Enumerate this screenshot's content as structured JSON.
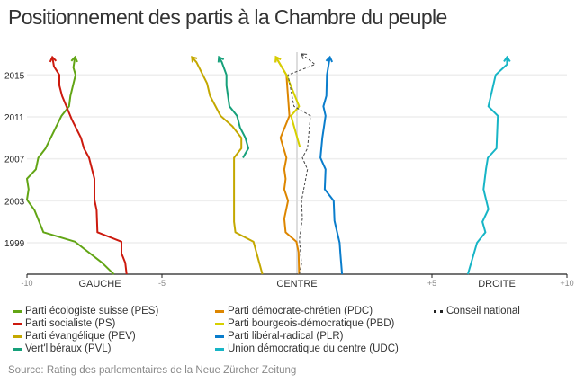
{
  "title": "Positionnement des partis à la Chambre du peuple",
  "source": "Source: Rating des parlementaires de la Neue Zürcher Zeitung",
  "chart_data": {
    "type": "line",
    "title": "Positionnement des partis à la Chambre du peuple",
    "xlim": [
      -10,
      10
    ],
    "ylim": [
      1996,
      2017
    ],
    "x_ticks": [
      {
        "value": -10,
        "label": "-10"
      },
      {
        "value": -5,
        "label": "-5"
      },
      {
        "value": 5,
        "label": "+5"
      },
      {
        "value": 10,
        "label": "+10"
      }
    ],
    "x_zone_labels": [
      {
        "value": -7.3,
        "label": "GAUCHE"
      },
      {
        "value": 0,
        "label": "CENTRE"
      },
      {
        "value": 7.4,
        "label": "DROITE"
      }
    ],
    "y_ticks": [
      1999,
      2003,
      2007,
      2011,
      2015
    ],
    "grid": true,
    "legend_position": "bottom",
    "series": [
      {
        "name": "Parti écologiste suisse (PES)",
        "color": "#62a515",
        "points": [
          [
            1996,
            -6.78
          ],
          [
            1997.1,
            -7.22
          ],
          [
            1999.1,
            -8.22
          ],
          [
            2000,
            -9.39
          ],
          [
            2002.1,
            -9.72
          ],
          [
            2003.1,
            -10
          ],
          [
            2004.1,
            -9.94
          ],
          [
            2005.1,
            -10
          ],
          [
            2006,
            -9.67
          ],
          [
            2007.1,
            -9.58
          ],
          [
            2008,
            -9.31
          ],
          [
            2011.1,
            -8.72
          ],
          [
            2012,
            -8.44
          ],
          [
            2013,
            -8.39
          ],
          [
            2015,
            -8.2
          ],
          [
            2015.7,
            -8.28
          ],
          [
            2016.7,
            -8.22
          ]
        ]
      },
      {
        "name": "Parti socialiste (PS)",
        "color": "#cc1a0e",
        "points": [
          [
            1996,
            -6.31
          ],
          [
            1997.1,
            -6.36
          ],
          [
            1998,
            -6.5
          ],
          [
            1999.1,
            -6.5
          ],
          [
            2000,
            -7.39
          ],
          [
            2002.1,
            -7.42
          ],
          [
            2003.1,
            -7.5
          ],
          [
            2005.1,
            -7.5
          ],
          [
            2007.1,
            -7.7
          ],
          [
            2008,
            -7.89
          ],
          [
            2009,
            -8
          ],
          [
            2010.7,
            -8.33
          ],
          [
            2013,
            -8.7
          ],
          [
            2014,
            -8.8
          ],
          [
            2015,
            -8.8
          ],
          [
            2015.8,
            -9
          ],
          [
            2016.7,
            -9.06
          ]
        ]
      },
      {
        "name": "Parti évangélique (PEV)",
        "color": "#c4a800",
        "points": [
          [
            1996,
            -1.28
          ],
          [
            1999.1,
            -1.61
          ],
          [
            2000,
            -2.28
          ],
          [
            2001,
            -2.33
          ],
          [
            2007.1,
            -2.33
          ],
          [
            2008,
            -2.06
          ],
          [
            2009,
            -2.06
          ],
          [
            2010.1,
            -2.39
          ],
          [
            2011.1,
            -2.83
          ],
          [
            2013,
            -3.22
          ],
          [
            2014.2,
            -3.33
          ],
          [
            2016.2,
            -3.72
          ],
          [
            2016.7,
            -3.89
          ]
        ]
      },
      {
        "name": "Vert'libéraux (PVL)",
        "color": "#16a07a",
        "points": [
          [
            2007.1,
            -2
          ],
          [
            2008,
            -1.8
          ],
          [
            2009,
            -1.91
          ],
          [
            2010,
            -2.11
          ],
          [
            2011.1,
            -2.22
          ],
          [
            2012,
            -2.5
          ],
          [
            2014,
            -2.61
          ],
          [
            2015,
            -2.61
          ],
          [
            2016.2,
            -2.78
          ],
          [
            2016.7,
            -2.89
          ]
        ]
      },
      {
        "name": "Parti démocrate-chrétien (PDC)",
        "color": "#dd8600",
        "points": [
          [
            1996,
            0.08
          ],
          [
            1998.1,
            0.06
          ],
          [
            1999.1,
            -0.02
          ],
          [
            2000,
            -0.42
          ],
          [
            2001.3,
            -0.47
          ],
          [
            2003,
            -0.33
          ],
          [
            2004.1,
            -0.47
          ],
          [
            2005.1,
            -0.42
          ],
          [
            2006,
            -0.47
          ],
          [
            2007.1,
            -0.39
          ],
          [
            2009,
            -0.61
          ],
          [
            2011.1,
            -0.28
          ],
          [
            2015,
            -0.39
          ],
          [
            2016.7,
            -0.78
          ]
        ]
      },
      {
        "name": "Parti bourgeois-démocratique (PBD)",
        "color": "#d6d000",
        "points": [
          [
            2008.1,
            0.11
          ],
          [
            2011.1,
            -0.22
          ],
          [
            2012,
            0.08
          ],
          [
            2015,
            -0.39
          ],
          [
            2016.7,
            -0.78
          ]
        ]
      },
      {
        "name": "Parti libéral-radical (PLR)",
        "color": "#0a7dcc",
        "points": [
          [
            1996,
            1.67
          ],
          [
            1997.9,
            1.61
          ],
          [
            1999,
            1.58
          ],
          [
            2000.2,
            1.47
          ],
          [
            2001.1,
            1.39
          ],
          [
            2003,
            1.36
          ],
          [
            2004.1,
            1.03
          ],
          [
            2006,
            1.06
          ],
          [
            2007.1,
            0.87
          ],
          [
            2009,
            0.94
          ],
          [
            2011.1,
            1.06
          ],
          [
            2012,
            0.98
          ],
          [
            2013,
            1.09
          ],
          [
            2015,
            1.11
          ],
          [
            2016.7,
            1.22
          ]
        ]
      },
      {
        "name": "Union démocratique du centre (UDC)",
        "color": "#17b5c6",
        "points": [
          [
            1996,
            6.33
          ],
          [
            1999,
            6.67
          ],
          [
            2000,
            6.98
          ],
          [
            2001,
            6.87
          ],
          [
            2002.2,
            7.09
          ],
          [
            2004.1,
            6.91
          ],
          [
            2006,
            7
          ],
          [
            2007.1,
            7.07
          ],
          [
            2008,
            7.39
          ],
          [
            2011.1,
            7.44
          ],
          [
            2012,
            7.09
          ],
          [
            2015,
            7.36
          ],
          [
            2016,
            7.78
          ],
          [
            2016.7,
            7.78
          ]
        ]
      },
      {
        "name": "Conseil national",
        "color": "#444444",
        "dashed": true,
        "points": [
          [
            1996,
            0.09
          ],
          [
            1997,
            0.17
          ],
          [
            1999.3,
            0.09
          ],
          [
            2001.3,
            0.2
          ],
          [
            2003,
            0.17
          ],
          [
            2006,
            0.39
          ],
          [
            2007.1,
            0.2
          ],
          [
            2008,
            0.39
          ],
          [
            2011.1,
            0.5
          ],
          [
            2012,
            -0.11
          ],
          [
            2015,
            -0.33
          ],
          [
            2016,
            0.67
          ],
          [
            2017,
            0.17
          ]
        ]
      }
    ]
  }
}
